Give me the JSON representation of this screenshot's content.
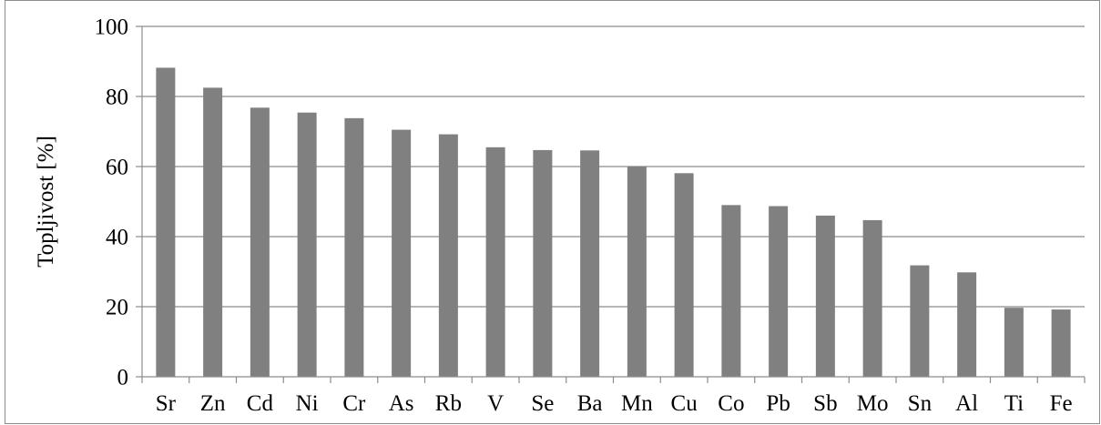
{
  "chart_data": {
    "type": "bar",
    "categories": [
      "Sr",
      "Zn",
      "Cd",
      "Ni",
      "Cr",
      "As",
      "Rb",
      "V",
      "Se",
      "Ba",
      "Mn",
      "Cu",
      "Co",
      "Pb",
      "Sb",
      "Mo",
      "Sn",
      "Al",
      "Ti",
      "Fe"
    ],
    "values": [
      88.2,
      82.5,
      76.8,
      75.4,
      73.8,
      70.5,
      69.2,
      65.5,
      64.7,
      64.6,
      60.0,
      58.1,
      49.0,
      48.7,
      46.0,
      44.7,
      31.8,
      29.8,
      19.7,
      19.2
    ],
    "title": "",
    "xlabel": "",
    "ylabel": "Topljivost [%]",
    "ylim": [
      0,
      100
    ],
    "yticks": [
      "0",
      "20",
      "40",
      "60",
      "80",
      "100"
    ],
    "grid": true,
    "legend": "none",
    "colors": {
      "bar": "#808080",
      "grid": "#8c8c8c",
      "axis": "#8c8c8c",
      "text": "#000000"
    }
  }
}
